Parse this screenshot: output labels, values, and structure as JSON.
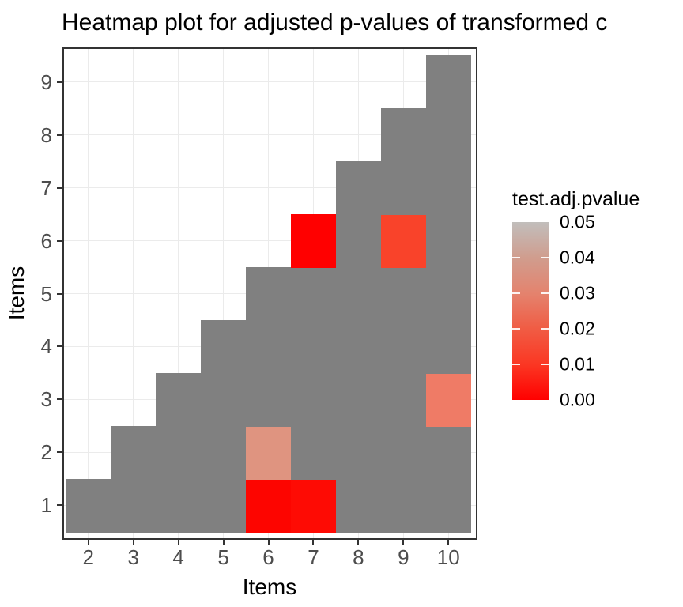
{
  "title": "Heatmap plot for adjusted p-values of transformed c",
  "x_axis": {
    "label": "Items",
    "ticks": [
      "2",
      "3",
      "4",
      "5",
      "6",
      "7",
      "8",
      "9",
      "10"
    ],
    "tick_values": [
      2,
      3,
      4,
      5,
      6,
      7,
      8,
      9,
      10
    ]
  },
  "y_axis": {
    "label": "Items",
    "ticks": [
      "1",
      "2",
      "3",
      "4",
      "5",
      "6",
      "7",
      "8",
      "9"
    ],
    "tick_values": [
      1,
      2,
      3,
      4,
      5,
      6,
      7,
      8,
      9
    ]
  },
  "legend": {
    "title": "test.adj.pvalue",
    "tick_labels": [
      "0.05",
      "0.04",
      "0.03",
      "0.02",
      "0.01",
      "0.00"
    ],
    "tick_label_values": [
      0.05,
      0.04,
      0.03,
      0.02,
      0.01,
      0.0
    ],
    "bar_tick_values": [
      0.04,
      0.03,
      0.02,
      0.01
    ],
    "gradient_stops_top_to_bottom": [
      "#C1BEBC",
      "#D09D8E",
      "#E4836E",
      "#F05C44",
      "#FB3723",
      "#FF0000"
    ],
    "low_color": "#FF0000",
    "high_color": "#C1BEBC"
  },
  "colors": {
    "background": "#FFFFFF",
    "panel_border": "#333333",
    "gridline": "#EBEBEB",
    "tick_text": "#4D4D4D",
    "na_cell": "#808080"
  },
  "chart_data": {
    "type": "heatmap",
    "title": "Heatmap plot for adjusted p-values of transformed c",
    "xlabel": "Items",
    "ylabel": "Items",
    "x_categories": [
      2,
      3,
      4,
      5,
      6,
      7,
      8,
      9,
      10
    ],
    "y_categories": [
      1,
      2,
      3,
      4,
      5,
      6,
      7,
      8,
      9
    ],
    "fill_rule": "lower_triangle: a tile is drawn for every pair (x,y) with y < x; tiles without a significant value are grey (NA fill)",
    "na_color": "#808080",
    "value_name": "test.adj.pvalue",
    "value_range": [
      0,
      0.05
    ],
    "colored_cells": [
      {
        "x": 6,
        "y": 1,
        "value": 0.001,
        "color": "#FD0500"
      },
      {
        "x": 7,
        "y": 1,
        "value": 0.003,
        "color": "#FE0B04"
      },
      {
        "x": 6,
        "y": 2,
        "value": 0.035,
        "color": "#DF9480"
      },
      {
        "x": 10,
        "y": 3,
        "value": 0.027,
        "color": "#EF7B66"
      },
      {
        "x": 7,
        "y": 6,
        "value": 0.0,
        "color": "#FF0000"
      },
      {
        "x": 9,
        "y": 6,
        "value": 0.012,
        "color": "#F9432A"
      }
    ],
    "legend_position": "right",
    "grid": "major-only"
  }
}
